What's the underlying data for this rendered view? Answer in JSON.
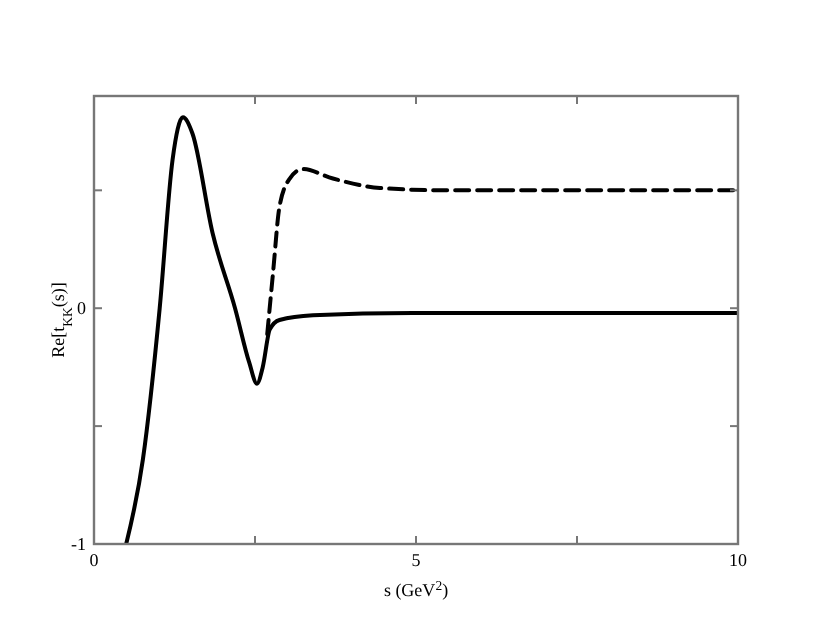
{
  "chart_data": {
    "type": "line",
    "xlabel": "s (GeV$^{2}$)",
    "ylabel": "Re[t$_{KK}$(s)]",
    "xlim": [
      0,
      10
    ],
    "ylim": [
      -1,
      0.9
    ],
    "xticks": [
      0,
      {
        "value": 2.5,
        "label": null
      },
      5,
      {
        "value": 7.5,
        "label": null
      },
      10
    ],
    "yticks": [
      -1,
      {
        "value": -0.5,
        "label": null
      },
      0,
      {
        "value": 0.5,
        "label": null
      }
    ],
    "grid": false,
    "marker": "none",
    "series": [
      {
        "color": "#000000",
        "line_style": "solid",
        "x": [
          0.5,
          0.76,
          1.02,
          1.22,
          1.38,
          1.53,
          1.84,
          2.19,
          2.41,
          2.53,
          2.62,
          2.73,
          2.88,
          3.4,
          4.95,
          9.98
        ],
        "values": [
          -1.0,
          -0.64,
          0.0,
          0.63,
          0.81,
          0.74,
          0.32,
          0.0,
          -0.23,
          -0.32,
          -0.25,
          -0.09,
          -0.05,
          -0.03,
          -0.02,
          -0.02
        ]
      },
      {
        "color": "#000000",
        "line_style": "dashed",
        "x": [
          2.69,
          2.78,
          2.88,
          3.04,
          3.24,
          3.71,
          4.44,
          5.47,
          9.98
        ],
        "values": [
          -0.11,
          0.15,
          0.43,
          0.55,
          0.59,
          0.55,
          0.51,
          0.5,
          0.5
        ]
      }
    ]
  }
}
